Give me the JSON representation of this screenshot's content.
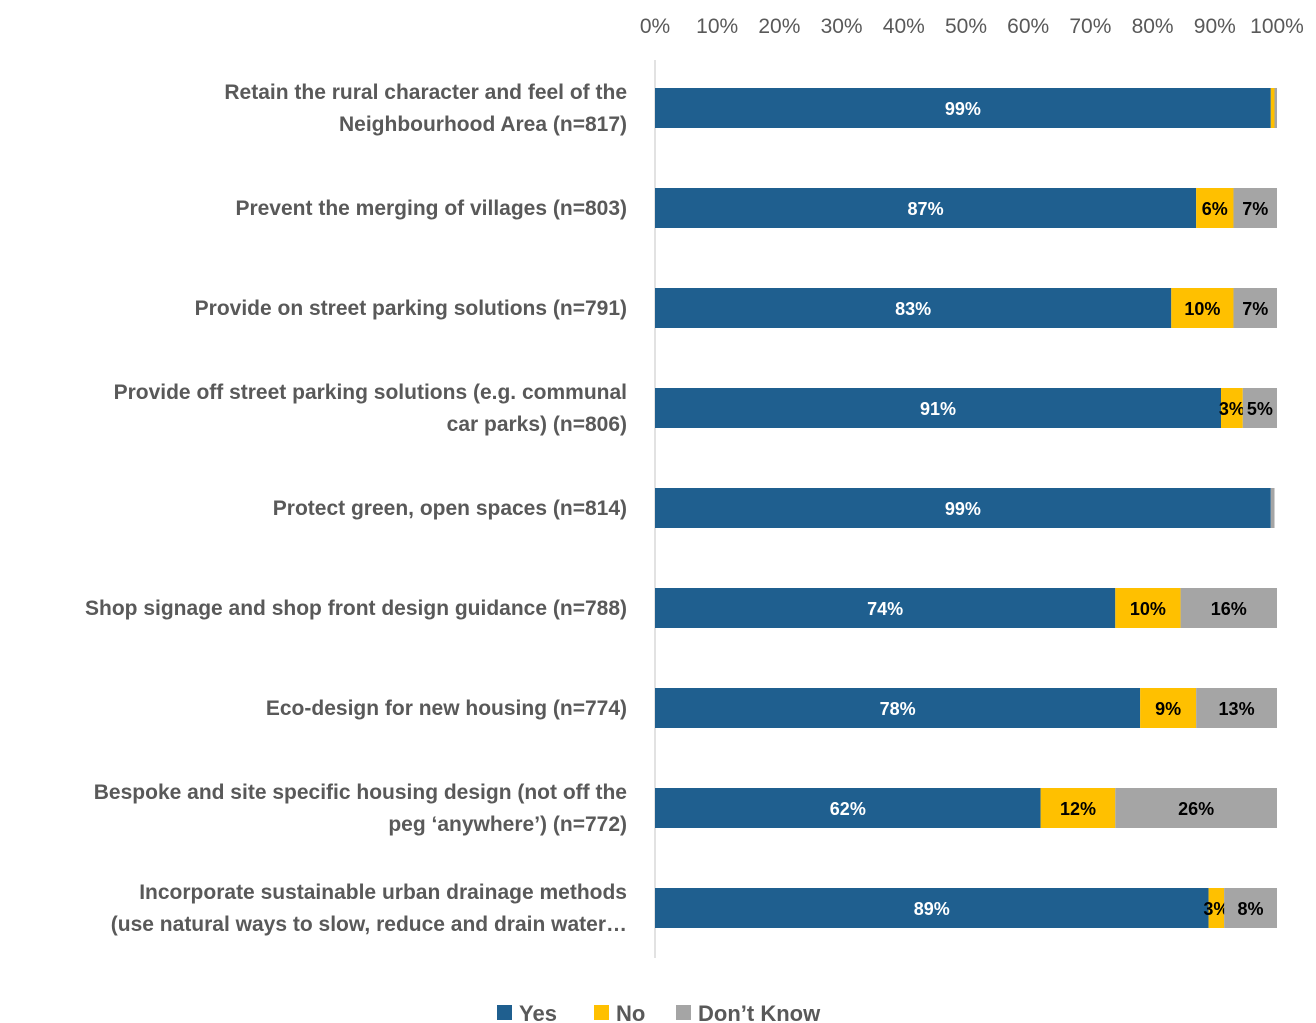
{
  "chart_data": {
    "type": "bar",
    "orientation": "horizontal",
    "stacked": "percent",
    "xlim": [
      0,
      100
    ],
    "x_ticks": [
      "0%",
      "10%",
      "20%",
      "30%",
      "40%",
      "50%",
      "60%",
      "70%",
      "80%",
      "90%",
      "100%"
    ],
    "axis_position": "top",
    "grid": false,
    "legend_position": "bottom",
    "categories": [
      [
        "Retain the rural character and feel of the",
        "Neighbourhood Area (n=817)"
      ],
      [
        "Prevent the merging of villages (n=803)"
      ],
      [
        "Provide on street parking solutions (n=791)"
      ],
      [
        "Provide off street parking solutions (e.g. communal",
        "car parks) (n=806)"
      ],
      [
        "Protect green, open spaces (n=814)"
      ],
      [
        "Shop signage and shop front design guidance (n=788)"
      ],
      [
        "Eco-design for new housing (n=774)"
      ],
      [
        "Bespoke and site specific housing design (not off the",
        "peg ‘anywhere’) (n=772)"
      ],
      [
        "Incorporate sustainable urban drainage methods",
        "(use natural ways to slow, reduce and drain water…"
      ]
    ],
    "series": [
      {
        "name": "Yes",
        "color": "#1f5f8f",
        "label_color": "#ffffff",
        "values": [
          99,
          87,
          83,
          91,
          99,
          74,
          78,
          62,
          89
        ],
        "labels": [
          "99%",
          "87%",
          "83%",
          "91%",
          "99%",
          "74%",
          "78%",
          "62%",
          "89%"
        ]
      },
      {
        "name": "No",
        "color": "#ffc000",
        "label_color": "#000000",
        "values": [
          0.6,
          6,
          10,
          3.5,
          0,
          10.5,
          9,
          12,
          2.5
        ],
        "labels": [
          "",
          "6%",
          "10%",
          "3%",
          "",
          "10%",
          "9%",
          "12%",
          "3%"
        ]
      },
      {
        "name": "Don’t Know",
        "color": "#a5a5a5",
        "label_color": "#000000",
        "values": [
          0.4,
          7,
          7,
          5.5,
          0.6,
          15.5,
          13,
          26,
          8.5
        ],
        "labels": [
          "",
          "7%",
          "7%",
          "5%",
          "",
          "16%",
          "13%",
          "26%",
          "8%"
        ]
      }
    ]
  }
}
